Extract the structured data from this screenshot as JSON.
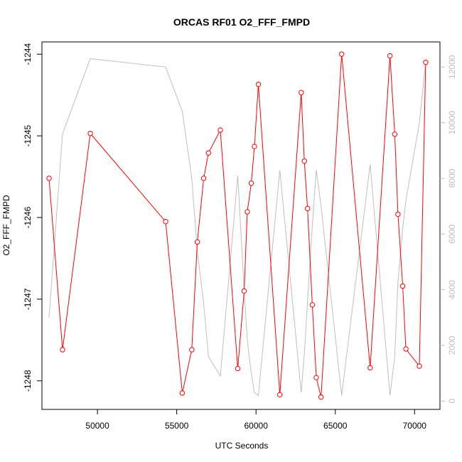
{
  "chart_data": {
    "type": "line",
    "title": "ORCAS RF01 O2_FFF_FMPD",
    "xlabel": "UTC Seconds",
    "ylabel": "O2_FFF_FMPD",
    "xlim": [
      46500,
      71600
    ],
    "ylim": [
      -1248.35,
      -1243.85
    ],
    "x_ticks": [
      50000,
      55000,
      60000,
      65000,
      70000
    ],
    "y_ticks": [
      -1248,
      -1247,
      -1246,
      -1245,
      -1244
    ],
    "y2lim": [
      -300,
      12900
    ],
    "y2_ticks": [
      0,
      2000,
      4000,
      6000,
      8000,
      10000,
      12000
    ],
    "grid": false,
    "series": [
      {
        "axis": "left",
        "color": "#ff0000",
        "marker": "open-circle",
        "x": [
          46950,
          47800,
          49550,
          54300,
          55350,
          55950,
          56300,
          56700,
          57000,
          57750,
          58850,
          59250,
          59450,
          59700,
          59900,
          60150,
          61500,
          62850,
          63050,
          63250,
          63550,
          63800,
          64100,
          65400,
          67200,
          68450,
          68750,
          68950,
          69250,
          69450,
          70300,
          70700
        ],
        "values": [
          -1245.52,
          -1247.62,
          -1244.97,
          -1246.05,
          -1248.15,
          -1247.62,
          -1246.3,
          -1245.52,
          -1245.21,
          -1244.93,
          -1247.85,
          -1246.9,
          -1245.93,
          -1245.58,
          -1245.13,
          -1244.37,
          -1248.17,
          -1244.47,
          -1245.31,
          -1245.89,
          -1247.07,
          -1247.96,
          -1248.2,
          -1244.0,
          -1247.84,
          -1244.02,
          -1244.98,
          -1245.96,
          -1246.84,
          -1247.61,
          -1247.82,
          -1244.1
        ]
      },
      {
        "axis": "right",
        "color": "#bebebe",
        "marker": "none",
        "x": [
          46950,
          47800,
          49550,
          54300,
          55350,
          55950,
          56300,
          56700,
          57000,
          57750,
          58850,
          59250,
          59450,
          59700,
          59900,
          60150,
          61500,
          62850,
          63050,
          63250,
          63550,
          63800,
          64100,
          65400,
          67200,
          68450,
          68750,
          68950,
          69250,
          69450,
          70300,
          70700
        ],
        "values": [
          3000,
          9600,
          12300,
          12000,
          10400,
          8000,
          5400,
          3500,
          1600,
          900,
          8100,
          4000,
          2200,
          1000,
          300,
          200,
          8300,
          300,
          1700,
          3600,
          6300,
          8300,
          7000,
          200,
          8500,
          200,
          1600,
          4300,
          6200,
          7200,
          10000,
          12200
        ]
      }
    ]
  }
}
